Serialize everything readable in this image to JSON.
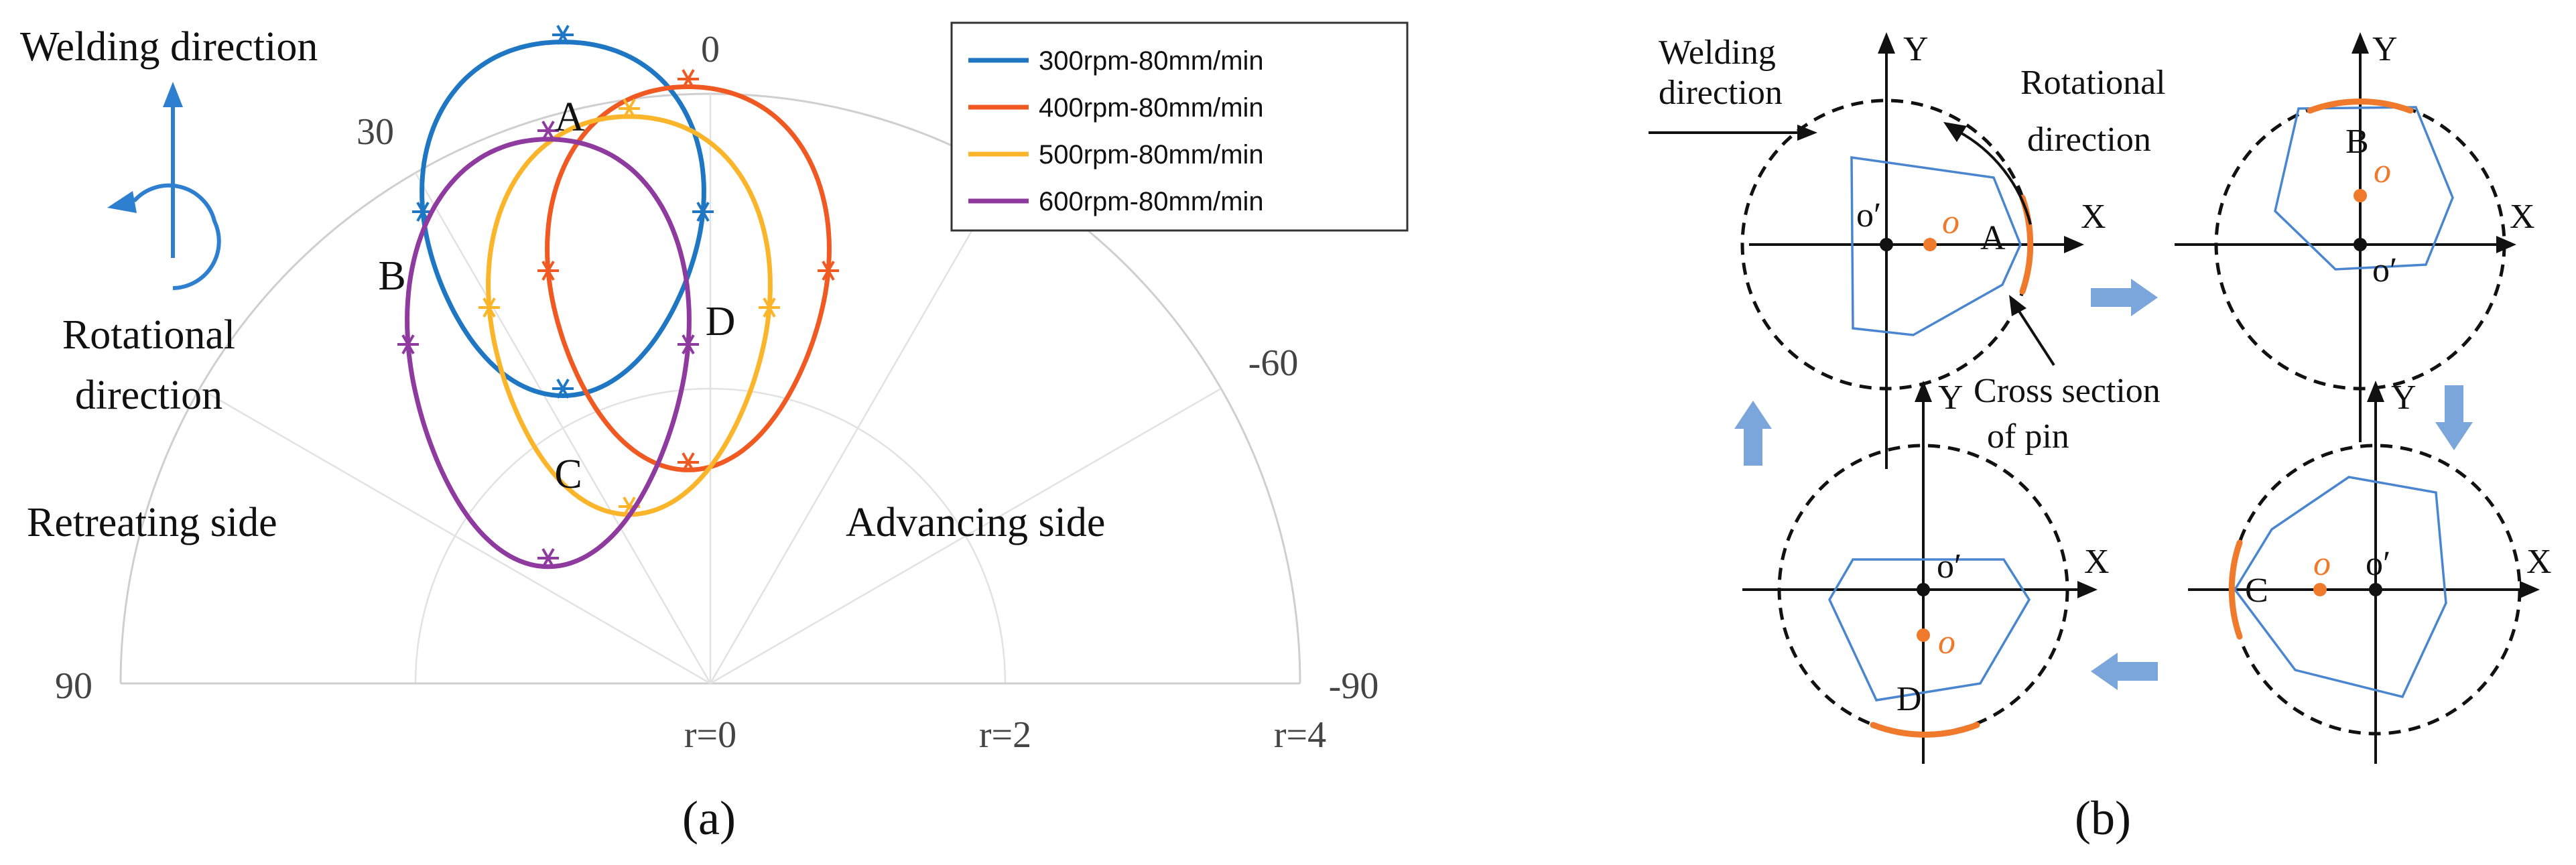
{
  "panel_a": {
    "title_welding": "Welding direction",
    "rotational_line1": "Rotational",
    "rotational_line2": "direction",
    "retreating": "Retreating side",
    "advancing": "Advancing side",
    "caption": "(a)",
    "angle_ticks": [
      "0",
      "30",
      "-60",
      "90",
      "-90"
    ],
    "radius_ticks": [
      "r=0",
      "r=2",
      "r=4"
    ],
    "point_labels": [
      "A",
      "B",
      "C",
      "D"
    ],
    "colors": {
      "axis_arrow": "#2f7fd0"
    }
  },
  "chart_data": {
    "type": "polar-line",
    "angle_range": [
      90,
      -90
    ],
    "r_range": [
      0,
      4
    ],
    "series": [
      {
        "name": "300rpm-80mm/min",
        "color": "#1f77c4",
        "center": [
          -1.0,
          3.2
        ],
        "rx": 0.95,
        "ry": 1.2
      },
      {
        "name": "400rpm-80mm/min",
        "color": "#f05a22",
        "center": [
          -0.15,
          2.8
        ],
        "rx": 0.95,
        "ry": 1.3
      },
      {
        "name": "500rpm-80mm/min",
        "color": "#fbb52b",
        "center": [
          -0.55,
          2.55
        ],
        "rx": 0.95,
        "ry": 1.35
      },
      {
        "name": "600rpm-80mm/min",
        "color": "#8e3a9e",
        "center": [
          -1.1,
          2.3
        ],
        "rx": 0.95,
        "ry": 1.45
      }
    ]
  },
  "panel_b": {
    "welding_line1": "Welding",
    "welding_line2": "direction",
    "rotational_line1": "Rotational",
    "rotational_line2": "direction",
    "cross_line1": "Cross section",
    "cross_line2": "of pin",
    "axis_x": "X",
    "axis_y": "Y",
    "o_label": "o",
    "o_prime": "o′",
    "state_labels": [
      "A",
      "B",
      "C",
      "D"
    ],
    "caption": "(b)",
    "colors": {
      "pin": "#4a86d0",
      "arc": "#f07a2c",
      "flow_arrow": "#7aa6dc"
    }
  }
}
